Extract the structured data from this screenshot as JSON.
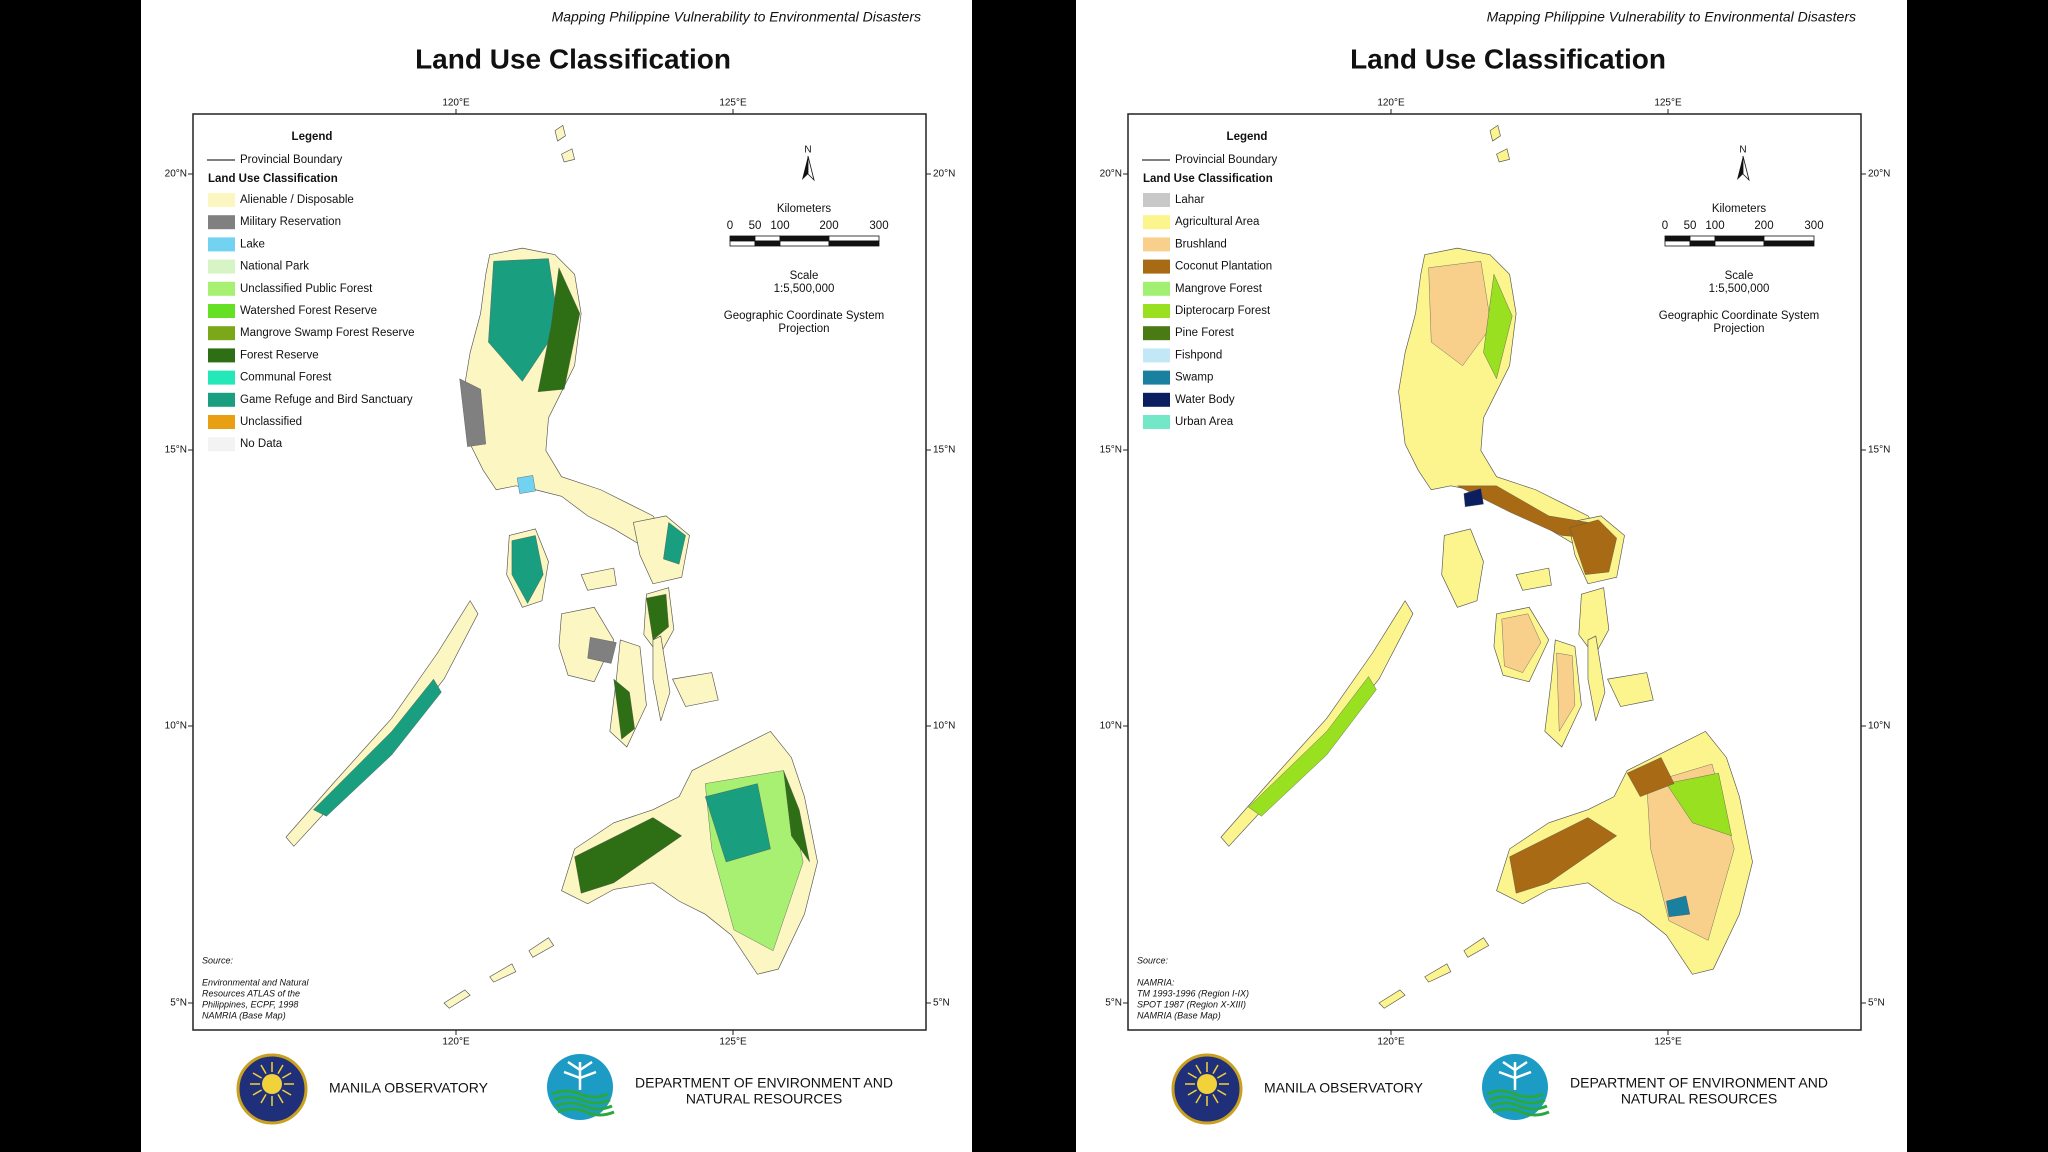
{
  "panels": [
    {
      "header": "Mapping Philippine Vulnerability to Environmental Disasters",
      "title": "Land Use Classification",
      "lon_ticks": [
        "120°E",
        "125°E"
      ],
      "lat_ticks": [
        "20°N",
        "15°N",
        "10°N",
        "5°N"
      ],
      "legend": {
        "title": "Legend",
        "boundary": "Provincial Boundary",
        "subtitle": "Land Use Classification",
        "items": [
          {
            "label": "Alienable / Disposable",
            "color": "#fbf6c2"
          },
          {
            "label": "Military Reservation",
            "color": "#808080"
          },
          {
            "label": "Lake",
            "color": "#72d2f2"
          },
          {
            "label": "National Park",
            "color": "#d6f4c6"
          },
          {
            "label": "Unclassified Public Forest",
            "color": "#a8f072"
          },
          {
            "label": "Watershed Forest Reserve",
            "color": "#66e022"
          },
          {
            "label": "Mangrove Swamp Forest Reserve",
            "color": "#7aa818"
          },
          {
            "label": "Forest Reserve",
            "color": "#2e6e14"
          },
          {
            "label": "Communal Forest",
            "color": "#24e8b8"
          },
          {
            "label": "Game Refuge and Bird Sanctuary",
            "color": "#1a9e80"
          },
          {
            "label": "Unclassified",
            "color": "#e8a012"
          },
          {
            "label": "No Data",
            "color": "#f3f3f3"
          }
        ]
      },
      "north": "N",
      "scale": {
        "units": "Kilometers",
        "ticks": [
          "0",
          "50",
          "100",
          "200",
          "300"
        ],
        "label": "Scale",
        "ratio": "1:5,500,000",
        "projection": [
          "Geographic Coordinate System",
          "Projection"
        ]
      },
      "source": {
        "label": "Source:",
        "lines": [
          "Environmental and Natural",
          "Resources ATLAS of the",
          "Philippines, ECPF, 1998",
          "NAMRIA (Base Map)"
        ]
      },
      "logos": {
        "left": "MANILA OBSERVATORY",
        "right": [
          "DEPARTMENT OF ENVIRONMENT AND",
          "NATURAL RESOURCES"
        ]
      }
    },
    {
      "header": "Mapping Philippine Vulnerability to Environmental Disasters",
      "title": "Land Use Classification",
      "lon_ticks": [
        "120°E",
        "125°E"
      ],
      "lat_ticks": [
        "20°N",
        "15°N",
        "10°N",
        "5°N"
      ],
      "legend": {
        "title": "Legend",
        "boundary": "Provincial Boundary",
        "subtitle": "Land Use Classification",
        "items": [
          {
            "label": "Lahar",
            "color": "#c8c8c8"
          },
          {
            "label": "Agricultural Area",
            "color": "#fcf48c"
          },
          {
            "label": "Brushland",
            "color": "#f8d08c"
          },
          {
            "label": "Coconut Plantation",
            "color": "#a86a14"
          },
          {
            "label": "Mangrove Forest",
            "color": "#a2f072"
          },
          {
            "label": "Dipterocarp Forest",
            "color": "#98e020"
          },
          {
            "label": "Pine Forest",
            "color": "#4a7a14"
          },
          {
            "label": "Fishpond",
            "color": "#c2e8f8"
          },
          {
            "label": "Swamp",
            "color": "#1a80a0"
          },
          {
            "label": "Water Body",
            "color": "#0a1e60"
          },
          {
            "label": "Urban Area",
            "color": "#72e8c8"
          }
        ]
      },
      "north": "N",
      "scale": {
        "units": "Kilometers",
        "ticks": [
          "0",
          "50",
          "100",
          "200",
          "300"
        ],
        "label": "Scale",
        "ratio": "1:5,500,000",
        "projection": [
          "Geographic Coordinate System",
          "Projection"
        ]
      },
      "source": {
        "label": "Source:",
        "lines": [
          "NAMRIA:",
          "TM 1993-1996 (Region I-IX)",
          "SPOT 1987 (Region X-XIII)",
          "NAMRIA (Base Map)"
        ]
      },
      "logos": {
        "left": "MANILA OBSERVATORY",
        "right": [
          "DEPARTMENT OF ENVIRONMENT AND",
          "NATURAL RESOURCES"
        ]
      }
    }
  ]
}
